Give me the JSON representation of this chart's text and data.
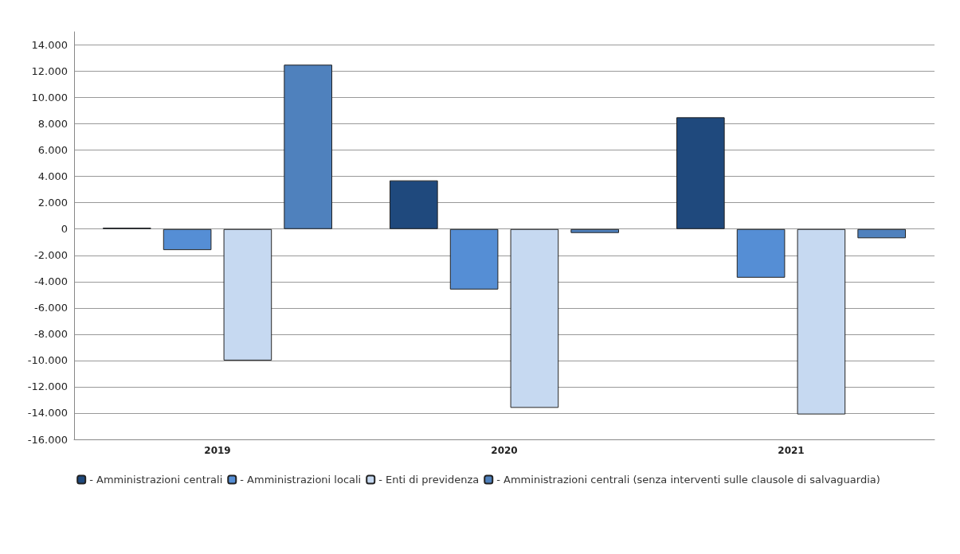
{
  "chart_data": {
    "type": "bar",
    "categories": [
      "2019",
      "2020",
      "2021"
    ],
    "series": [
      {
        "name": "- Amministrazioni centrali",
        "color": "#1f497d",
        "values": [
          100,
          3700,
          8500
        ]
      },
      {
        "name": "- Amministrazioni locali",
        "color": "#558ed5",
        "values": [
          -1600,
          -4600,
          -3700
        ]
      },
      {
        "name": "- Enti di previdenza",
        "color": "#c6d9f1",
        "values": [
          -10000,
          -13600,
          -14100
        ]
      },
      {
        "name": "- Amministrazioni centrali (senza interventi sulle clausole di salvaguardia)",
        "color": "#4f81bd",
        "values": [
          12500,
          -300,
          -700
        ]
      }
    ],
    "ylim": [
      -16000,
      15000
    ],
    "yticks": [
      {
        "value": -16000,
        "label": "-16.000"
      },
      {
        "value": -14000,
        "label": "-14.000"
      },
      {
        "value": -12000,
        "label": "-12.000"
      },
      {
        "value": -10000,
        "label": "-10.000"
      },
      {
        "value": -8000,
        "label": "-8.000"
      },
      {
        "value": -6000,
        "label": "-6.000"
      },
      {
        "value": -4000,
        "label": "-4.000"
      },
      {
        "value": -2000,
        "label": "-2.000"
      },
      0,
      {
        "value": 2000,
        "label": "2.000"
      },
      {
        "value": 4000,
        "label": "4.000"
      },
      {
        "value": 6000,
        "label": "6.000"
      },
      {
        "value": 8000,
        "label": "8.000"
      },
      {
        "value": 10000,
        "label": "10.000"
      },
      {
        "value": 12000,
        "label": "12.000"
      },
      {
        "value": 14000,
        "label": "14.000"
      }
    ],
    "grid": "y",
    "legend": "bottom"
  }
}
